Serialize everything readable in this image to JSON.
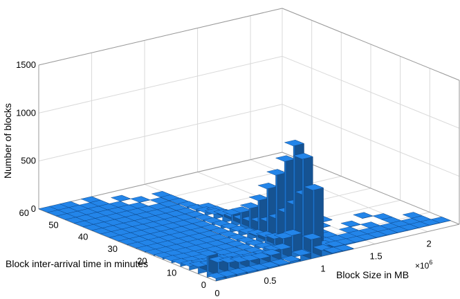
{
  "chart_data": {
    "type": "bar3d",
    "title": "",
    "xlabel": "Block Size in MB",
    "ylabel": "Block inter-arrival time in minutes",
    "zlabel": "Number of blocks",
    "x_exponent": "×10",
    "x_exponent_power": "6",
    "xlim": [
      0,
      2.3
    ],
    "ylim": [
      0,
      60
    ],
    "zlim": [
      0,
      1500
    ],
    "x_ticks": [
      "0",
      "0.5",
      "1",
      "1.5",
      "2"
    ],
    "y_ticks": [
      "0",
      "10",
      "20",
      "30",
      "40",
      "50",
      "60"
    ],
    "z_ticks": [
      "0",
      "500",
      "1000",
      "1500"
    ],
    "grid": true,
    "bar_color": "#1f77d0",
    "x_bins_mb": [
      0.05,
      0.15,
      0.25,
      0.35,
      0.45,
      0.55,
      0.65,
      0.75,
      0.85,
      0.95,
      1.05,
      1.15,
      1.25,
      1.35,
      1.45,
      1.55,
      1.65,
      1.75,
      1.85,
      1.95,
      2.05,
      2.15,
      2.25
    ],
    "y_bins_min": [
      1.5,
      4.5,
      7.5,
      10.5,
      13.5,
      16.5,
      19.5,
      22.5,
      25.5,
      28.5,
      31.5,
      34.5,
      37.5,
      40.5,
      43.5,
      46.5,
      49.5,
      52.5,
      55.5,
      58.5
    ],
    "bars": [
      [
        0.05,
        1.5,
        25
      ],
      [
        0.15,
        1.5,
        20
      ],
      [
        0.25,
        1.5,
        18
      ],
      [
        0.35,
        1.5,
        15
      ],
      [
        0.45,
        1.5,
        12
      ],
      [
        0.55,
        1.5,
        10
      ],
      [
        0.65,
        1.5,
        12
      ],
      [
        0.75,
        1.5,
        20
      ],
      [
        0.85,
        1.5,
        60
      ],
      [
        0.95,
        1.5,
        200
      ],
      [
        1.05,
        1.5,
        60
      ],
      [
        1.15,
        1.5,
        8
      ],
      [
        1.25,
        1.5,
        5
      ],
      [
        0.05,
        4.5,
        220
      ],
      [
        0.15,
        4.5,
        130
      ],
      [
        0.25,
        4.5,
        100
      ],
      [
        0.35,
        4.5,
        80
      ],
      [
        0.45,
        4.5,
        70
      ],
      [
        0.55,
        4.5,
        65
      ],
      [
        0.65,
        4.5,
        75
      ],
      [
        0.75,
        4.5,
        110
      ],
      [
        0.85,
        4.5,
        230
      ],
      [
        0.95,
        4.5,
        1000
      ],
      [
        1.05,
        4.5,
        650
      ],
      [
        1.15,
        4.5,
        40
      ],
      [
        1.25,
        4.5,
        10
      ],
      [
        1.35,
        4.5,
        8
      ],
      [
        1.45,
        4.5,
        6
      ],
      [
        1.55,
        4.5,
        5
      ],
      [
        1.65,
        4.5,
        5
      ],
      [
        1.75,
        4.5,
        4
      ],
      [
        1.85,
        4.5,
        4
      ],
      [
        1.95,
        4.5,
        3
      ],
      [
        2.05,
        4.5,
        3
      ],
      [
        2.15,
        4.5,
        3
      ],
      [
        2.25,
        4.5,
        2
      ],
      [
        0.05,
        7.5,
        70
      ],
      [
        0.15,
        7.5,
        55
      ],
      [
        0.25,
        7.5,
        45
      ],
      [
        0.35,
        7.5,
        40
      ],
      [
        0.45,
        7.5,
        35
      ],
      [
        0.55,
        7.5,
        30
      ],
      [
        0.65,
        7.5,
        35
      ],
      [
        0.75,
        7.5,
        60
      ],
      [
        0.85,
        7.5,
        160
      ],
      [
        0.95,
        7.5,
        1100
      ],
      [
        1.05,
        7.5,
        560
      ],
      [
        1.15,
        7.5,
        30
      ],
      [
        1.25,
        7.5,
        8
      ],
      [
        1.35,
        7.5,
        6
      ],
      [
        1.45,
        7.5,
        5
      ],
      [
        1.55,
        7.5,
        4
      ],
      [
        1.65,
        7.5,
        4
      ],
      [
        1.75,
        7.5,
        3
      ],
      [
        1.85,
        7.5,
        3
      ],
      [
        1.95,
        7.5,
        2
      ],
      [
        2.05,
        7.5,
        2
      ],
      [
        2.15,
        7.5,
        2
      ],
      [
        0.05,
        10.5,
        40
      ],
      [
        0.15,
        10.5,
        32
      ],
      [
        0.25,
        10.5,
        28
      ],
      [
        0.35,
        10.5,
        24
      ],
      [
        0.45,
        10.5,
        20
      ],
      [
        0.55,
        10.5,
        20
      ],
      [
        0.65,
        10.5,
        25
      ],
      [
        0.75,
        10.5,
        45
      ],
      [
        0.85,
        10.5,
        120
      ],
      [
        0.95,
        10.5,
        900
      ],
      [
        1.05,
        10.5,
        420
      ],
      [
        1.15,
        10.5,
        20
      ],
      [
        1.25,
        10.5,
        6
      ],
      [
        1.35,
        10.5,
        5
      ],
      [
        1.55,
        10.5,
        4
      ],
      [
        1.75,
        10.5,
        3
      ],
      [
        1.95,
        10.5,
        2
      ],
      [
        2.15,
        10.5,
        2
      ],
      [
        0.05,
        13.5,
        25
      ],
      [
        0.15,
        13.5,
        20
      ],
      [
        0.25,
        13.5,
        18
      ],
      [
        0.35,
        13.5,
        15
      ],
      [
        0.45,
        13.5,
        14
      ],
      [
        0.55,
        13.5,
        14
      ],
      [
        0.65,
        13.5,
        18
      ],
      [
        0.75,
        13.5,
        35
      ],
      [
        0.85,
        13.5,
        100
      ],
      [
        0.95,
        13.5,
        720
      ],
      [
        1.05,
        13.5,
        300
      ],
      [
        1.15,
        13.5,
        15
      ],
      [
        1.35,
        13.5,
        4
      ],
      [
        1.65,
        13.5,
        3
      ],
      [
        1.95,
        13.5,
        2
      ],
      [
        0.05,
        16.5,
        18
      ],
      [
        0.15,
        16.5,
        14
      ],
      [
        0.25,
        16.5,
        12
      ],
      [
        0.35,
        16.5,
        10
      ],
      [
        0.45,
        16.5,
        10
      ],
      [
        0.55,
        16.5,
        10
      ],
      [
        0.65,
        16.5,
        14
      ],
      [
        0.75,
        16.5,
        28
      ],
      [
        0.85,
        16.5,
        80
      ],
      [
        0.95,
        16.5,
        540
      ],
      [
        1.05,
        16.5,
        200
      ],
      [
        1.15,
        16.5,
        10
      ],
      [
        1.45,
        16.5,
        3
      ],
      [
        1.85,
        16.5,
        2
      ],
      [
        0.05,
        19.5,
        12
      ],
      [
        0.15,
        19.5,
        10
      ],
      [
        0.25,
        19.5,
        9
      ],
      [
        0.35,
        19.5,
        8
      ],
      [
        0.45,
        19.5,
        8
      ],
      [
        0.55,
        19.5,
        8
      ],
      [
        0.65,
        19.5,
        10
      ],
      [
        0.75,
        19.5,
        20
      ],
      [
        0.85,
        19.5,
        60
      ],
      [
        0.95,
        19.5,
        380
      ],
      [
        1.05,
        19.5,
        130
      ],
      [
        1.15,
        19.5,
        8
      ],
      [
        1.55,
        19.5,
        2
      ],
      [
        0.05,
        22.5,
        8
      ],
      [
        0.15,
        22.5,
        7
      ],
      [
        0.25,
        22.5,
        6
      ],
      [
        0.35,
        22.5,
        6
      ],
      [
        0.45,
        22.5,
        6
      ],
      [
        0.55,
        22.5,
        6
      ],
      [
        0.65,
        22.5,
        8
      ],
      [
        0.75,
        22.5,
        15
      ],
      [
        0.85,
        22.5,
        45
      ],
      [
        0.95,
        22.5,
        260
      ],
      [
        1.05,
        22.5,
        90
      ],
      [
        1.15,
        22.5,
        6
      ],
      [
        0.05,
        25.5,
        6
      ],
      [
        0.15,
        25.5,
        5
      ],
      [
        0.25,
        25.5,
        5
      ],
      [
        0.35,
        25.5,
        5
      ],
      [
        0.45,
        25.5,
        5
      ],
      [
        0.55,
        25.5,
        5
      ],
      [
        0.65,
        25.5,
        6
      ],
      [
        0.75,
        25.5,
        12
      ],
      [
        0.85,
        25.5,
        35
      ],
      [
        0.95,
        25.5,
        180
      ],
      [
        1.05,
        25.5,
        60
      ],
      [
        1.15,
        25.5,
        5
      ],
      [
        0.05,
        28.5,
        5
      ],
      [
        0.15,
        28.5,
        4
      ],
      [
        0.25,
        28.5,
        4
      ],
      [
        0.35,
        28.5,
        4
      ],
      [
        0.45,
        28.5,
        4
      ],
      [
        0.55,
        28.5,
        4
      ],
      [
        0.65,
        28.5,
        5
      ],
      [
        0.75,
        28.5,
        9
      ],
      [
        0.85,
        28.5,
        25
      ],
      [
        0.95,
        28.5,
        120
      ],
      [
        1.05,
        28.5,
        40
      ],
      [
        0.05,
        31.5,
        4
      ],
      [
        0.15,
        31.5,
        3
      ],
      [
        0.25,
        31.5,
        3
      ],
      [
        0.35,
        31.5,
        3
      ],
      [
        0.45,
        31.5,
        3
      ],
      [
        0.55,
        31.5,
        3
      ],
      [
        0.65,
        31.5,
        4
      ],
      [
        0.75,
        31.5,
        7
      ],
      [
        0.85,
        31.5,
        18
      ],
      [
        0.95,
        31.5,
        80
      ],
      [
        1.05,
        31.5,
        25
      ],
      [
        0.05,
        34.5,
        3
      ],
      [
        0.15,
        34.5,
        3
      ],
      [
        0.25,
        34.5,
        3
      ],
      [
        0.35,
        34.5,
        3
      ],
      [
        0.45,
        34.5,
        3
      ],
      [
        0.55,
        34.5,
        3
      ],
      [
        0.65,
        34.5,
        3
      ],
      [
        0.75,
        34.5,
        5
      ],
      [
        0.85,
        34.5,
        12
      ],
      [
        0.95,
        34.5,
        50
      ],
      [
        1.05,
        34.5,
        15
      ],
      [
        0.05,
        37.5,
        3
      ],
      [
        0.15,
        37.5,
        2
      ],
      [
        0.25,
        37.5,
        2
      ],
      [
        0.35,
        37.5,
        2
      ],
      [
        0.45,
        37.5,
        2
      ],
      [
        0.55,
        37.5,
        2
      ],
      [
        0.65,
        37.5,
        3
      ],
      [
        0.75,
        37.5,
        4
      ],
      [
        0.85,
        37.5,
        8
      ],
      [
        0.95,
        37.5,
        30
      ],
      [
        1.05,
        37.5,
        10
      ],
      [
        0.05,
        40.5,
        2
      ],
      [
        0.15,
        40.5,
        2
      ],
      [
        0.25,
        40.5,
        2
      ],
      [
        0.35,
        40.5,
        2
      ],
      [
        0.45,
        40.5,
        2
      ],
      [
        0.55,
        40.5,
        2
      ],
      [
        0.65,
        40.5,
        2
      ],
      [
        0.75,
        40.5,
        3
      ],
      [
        0.85,
        40.5,
        5
      ],
      [
        0.95,
        40.5,
        18
      ],
      [
        1.05,
        40.5,
        6
      ],
      [
        0.05,
        43.5,
        2
      ],
      [
        0.15,
        43.5,
        2
      ],
      [
        0.25,
        43.5,
        2
      ],
      [
        0.35,
        43.5,
        2
      ],
      [
        0.45,
        43.5,
        2
      ],
      [
        0.55,
        43.5,
        2
      ],
      [
        0.65,
        43.5,
        2
      ],
      [
        0.75,
        43.5,
        2
      ],
      [
        0.85,
        43.5,
        4
      ],
      [
        0.95,
        43.5,
        12
      ],
      [
        0.05,
        46.5,
        2
      ],
      [
        0.15,
        46.5,
        2
      ],
      [
        0.25,
        46.5,
        2
      ],
      [
        0.35,
        46.5,
        2
      ],
      [
        0.45,
        46.5,
        2
      ],
      [
        0.55,
        46.5,
        2
      ],
      [
        0.65,
        46.5,
        2
      ],
      [
        0.75,
        46.5,
        2
      ],
      [
        0.85,
        46.5,
        3
      ],
      [
        0.95,
        46.5,
        8
      ],
      [
        0.05,
        49.5,
        2
      ],
      [
        0.15,
        49.5,
        2
      ],
      [
        0.25,
        49.5,
        2
      ],
      [
        0.35,
        49.5,
        2
      ],
      [
        0.45,
        49.5,
        2
      ],
      [
        0.55,
        49.5,
        2
      ],
      [
        0.65,
        49.5,
        2
      ],
      [
        0.85,
        49.5,
        2
      ],
      [
        0.95,
        49.5,
        5
      ],
      [
        0.05,
        52.5,
        2
      ],
      [
        0.15,
        52.5,
        2
      ],
      [
        0.25,
        52.5,
        2
      ],
      [
        0.35,
        52.5,
        2
      ],
      [
        0.45,
        52.5,
        2
      ],
      [
        0.55,
        52.5,
        2
      ],
      [
        0.75,
        52.5,
        2
      ],
      [
        0.95,
        52.5,
        3
      ],
      [
        0.05,
        55.5,
        2
      ],
      [
        0.15,
        55.5,
        2
      ],
      [
        0.25,
        55.5,
        2
      ],
      [
        0.35,
        55.5,
        2
      ],
      [
        0.45,
        55.5,
        2
      ],
      [
        0.65,
        55.5,
        2
      ],
      [
        0.05,
        58.5,
        2
      ],
      [
        0.15,
        58.5,
        2
      ],
      [
        0.25,
        58.5,
        2
      ],
      [
        0.45,
        58.5,
        2
      ]
    ]
  }
}
